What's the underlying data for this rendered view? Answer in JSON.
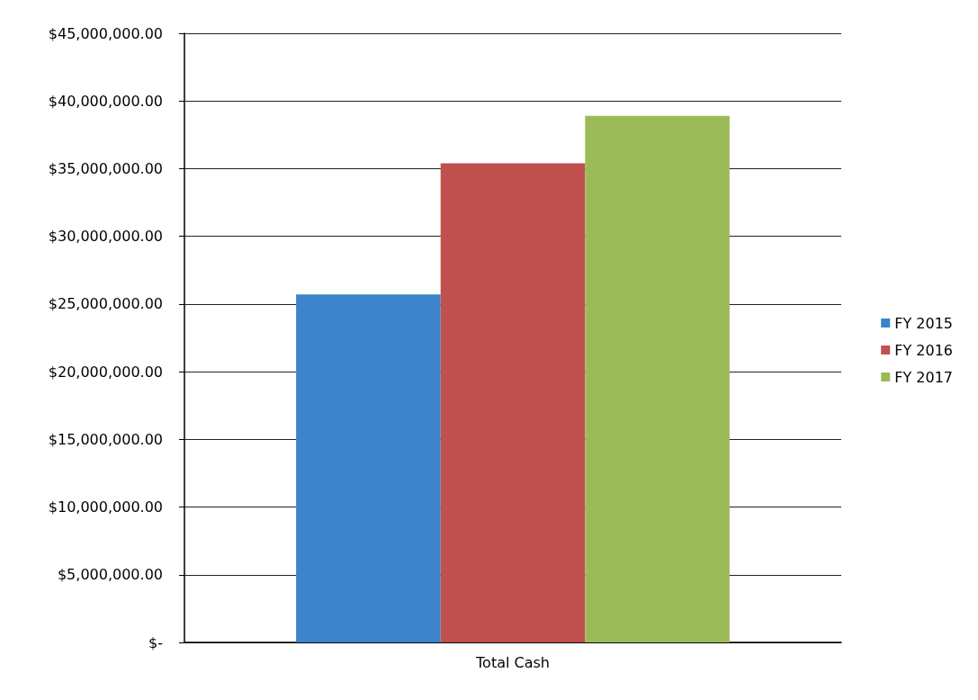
{
  "chart_data": {
    "type": "bar",
    "categories": [
      "Total Cash"
    ],
    "series": [
      {
        "name": "FY 2015",
        "color": "#3b84cc",
        "values": [
          25700000
        ]
      },
      {
        "name": "FY 2016",
        "color": "#c0504d",
        "values": [
          35400000
        ]
      },
      {
        "name": "FY 2017",
        "color": "#9bbb59",
        "values": [
          38900000
        ]
      }
    ],
    "ylim": [
      0,
      45000000
    ],
    "yticks": [
      {
        "value": 0,
        "label": "$-"
      },
      {
        "value": 5000000,
        "label": "$5,000,000.00"
      },
      {
        "value": 10000000,
        "label": "$10,000,000.00"
      },
      {
        "value": 15000000,
        "label": "$15,000,000.00"
      },
      {
        "value": 20000000,
        "label": "$20,000,000.00"
      },
      {
        "value": 25000000,
        "label": "$25,000,000.00"
      },
      {
        "value": 30000000,
        "label": "$30,000,000.00"
      },
      {
        "value": 35000000,
        "label": "$35,000,000.00"
      },
      {
        "value": 40000000,
        "label": "$40,000,000.00"
      },
      {
        "value": 45000000,
        "label": "$45,000,000.00"
      }
    ],
    "grid": "y",
    "legend": "right"
  }
}
